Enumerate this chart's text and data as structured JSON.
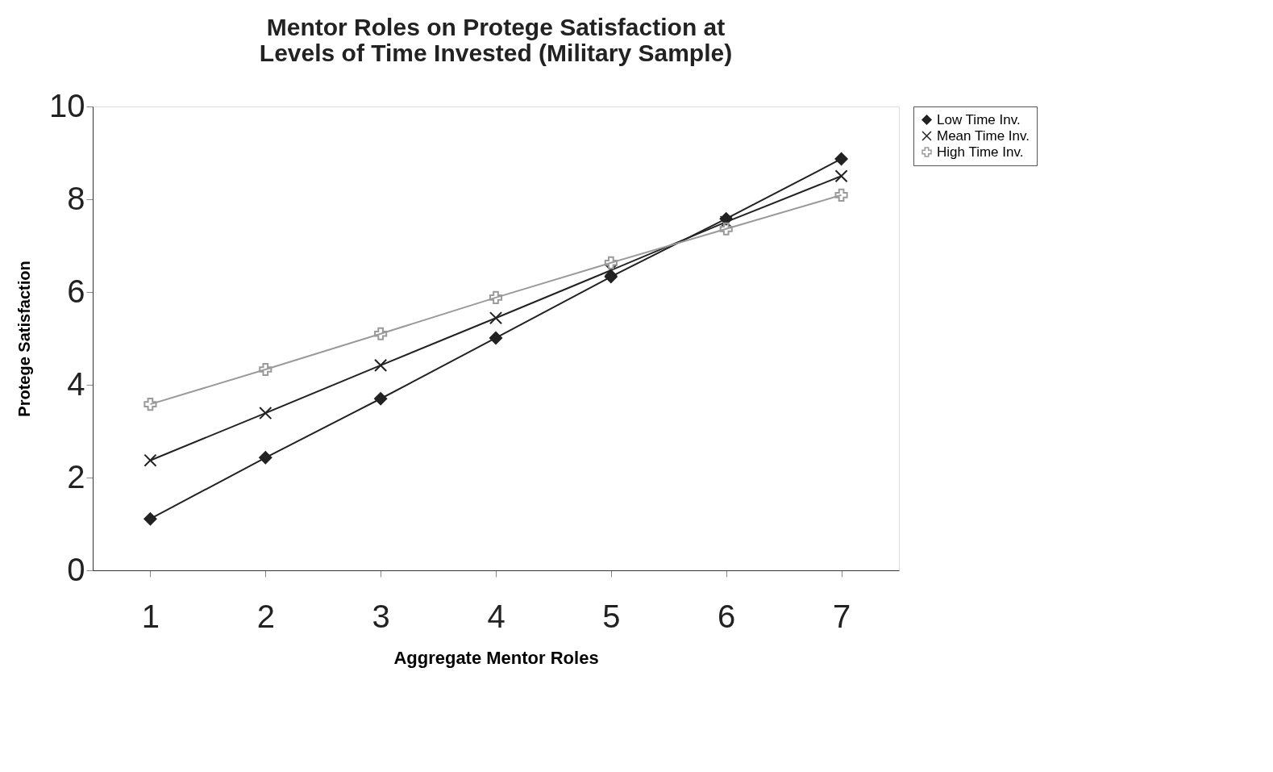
{
  "chart_data": {
    "type": "line",
    "title": [
      "Mentor Roles on Protege Satisfaction at",
      "Levels of Time Invested (Military Sample)"
    ],
    "xlabel": "Aggregate Mentor Roles",
    "ylabel": "Protege Satisfaction",
    "categories": [
      "1",
      "2",
      "3",
      "4",
      "5",
      "6",
      "7"
    ],
    "ylim": [
      0,
      10
    ],
    "yticks": [
      0,
      2,
      4,
      6,
      8,
      10
    ],
    "grid": false,
    "legend": "right",
    "series": [
      {
        "name": "Low Time Inv.",
        "color": "#222222",
        "marker": "diamond",
        "values": [
          1.11,
          2.43,
          3.7,
          5.01,
          6.33,
          7.58,
          8.87
        ]
      },
      {
        "name": "Mean Time Inv.",
        "color": "#222222",
        "marker": "cross",
        "values": [
          2.37,
          3.39,
          4.42,
          5.44,
          6.47,
          7.51,
          8.5
        ]
      },
      {
        "name": "High Time Inv.",
        "color": "#9a9a9a",
        "marker": "plus",
        "values": [
          3.58,
          4.33,
          5.1,
          5.88,
          6.63,
          7.36,
          8.09
        ]
      }
    ]
  }
}
